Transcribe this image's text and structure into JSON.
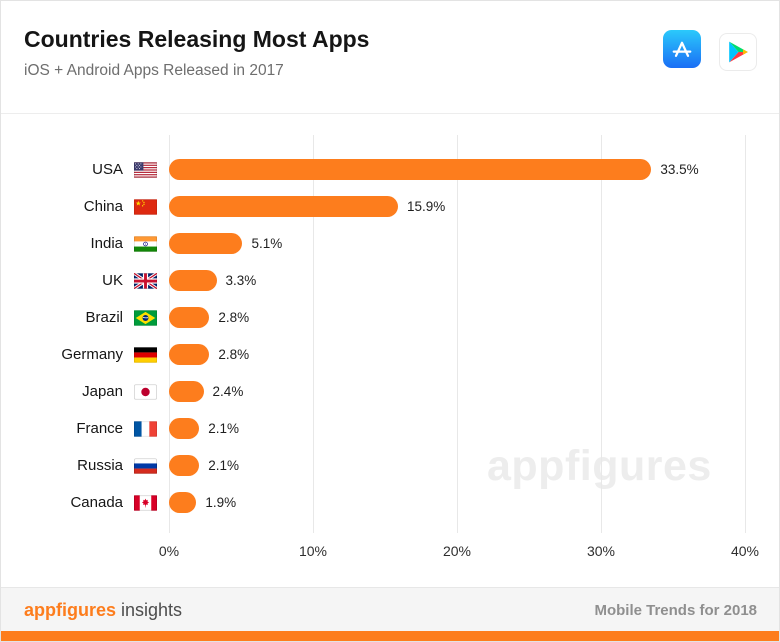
{
  "header": {
    "title": "Countries Releasing Most Apps",
    "subtitle": "iOS + Android Apps Released in 2017"
  },
  "icons": {
    "app_store": "app-store-icon",
    "google_play": "google-play-icon",
    "flags": [
      "usa-flag-icon",
      "china-flag-icon",
      "india-flag-icon",
      "uk-flag-icon",
      "brazil-flag-icon",
      "germany-flag-icon",
      "japan-flag-icon",
      "france-flag-icon",
      "russia-flag-icon",
      "canada-flag-icon"
    ]
  },
  "chart_data": {
    "type": "bar",
    "orientation": "horizontal",
    "title": "Countries Releasing Most Apps",
    "subtitle": "iOS + Android Apps Released in 2017",
    "categories": [
      "USA",
      "China",
      "India",
      "UK",
      "Brazil",
      "Germany",
      "Japan",
      "France",
      "Russia",
      "Canada"
    ],
    "values": [
      33.5,
      15.9,
      5.1,
      3.3,
      2.8,
      2.8,
      2.4,
      2.1,
      2.1,
      1.9
    ],
    "value_labels": [
      "33.5%",
      "15.9%",
      "5.1%",
      "3.3%",
      "2.8%",
      "2.8%",
      "2.4%",
      "2.1%",
      "2.1%",
      "1.9%"
    ],
    "x_ticks": [
      "0%",
      "10%",
      "20%",
      "30%",
      "40%"
    ],
    "xlim": [
      0,
      40
    ],
    "grid": true,
    "legend": "none",
    "bar_color": "#FD7D1D",
    "watermark": "appfigures"
  },
  "footer": {
    "brand": "appfigures",
    "suffix": "insights",
    "right_text": "Mobile Trends for 2018"
  },
  "colors": {
    "accent": "#FD7D1D",
    "grid": "#E8E8E8",
    "footer_bg": "#F5F5F5"
  }
}
